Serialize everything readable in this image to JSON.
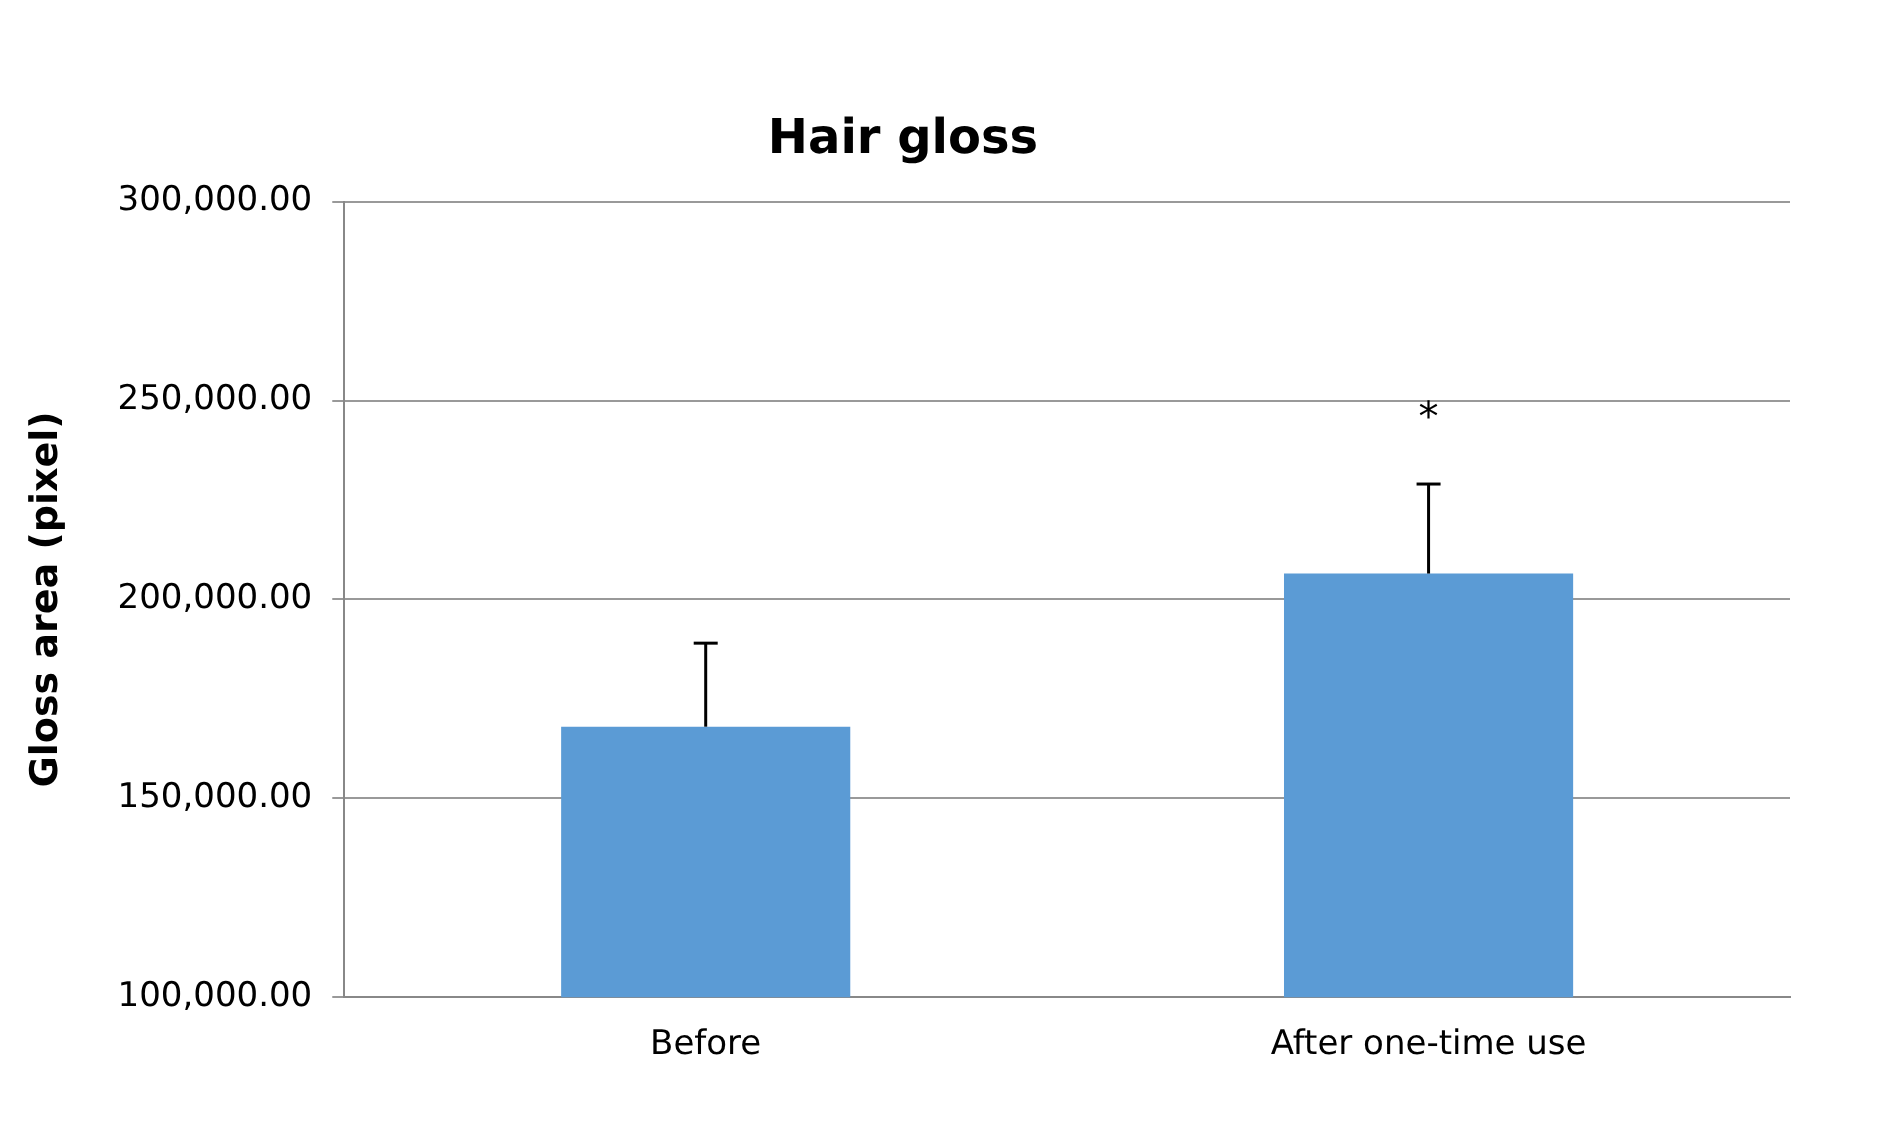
{
  "chart_data": {
    "type": "bar",
    "title": "Hair gloss",
    "ylabel": "Gloss area (pixel)",
    "categories": [
      "Before",
      "After one-time use"
    ],
    "values": [
      168000,
      206500
    ],
    "errors": [
      [
        168000,
        189000
      ],
      [
        206500,
        229000
      ]
    ],
    "color": "#5b9bd5",
    "ylim": [
      100000,
      300000
    ],
    "yticks": [
      {
        "value": 100000,
        "label": "100,000.00"
      },
      {
        "value": 150000,
        "label": "150,000.00"
      },
      {
        "value": 200000,
        "label": "200,000.00"
      },
      {
        "value": 250000,
        "label": "250,000.00"
      },
      {
        "value": 300000,
        "label": "300,000.00"
      }
    ],
    "grid": "y",
    "annotations": [
      "*"
    ]
  }
}
